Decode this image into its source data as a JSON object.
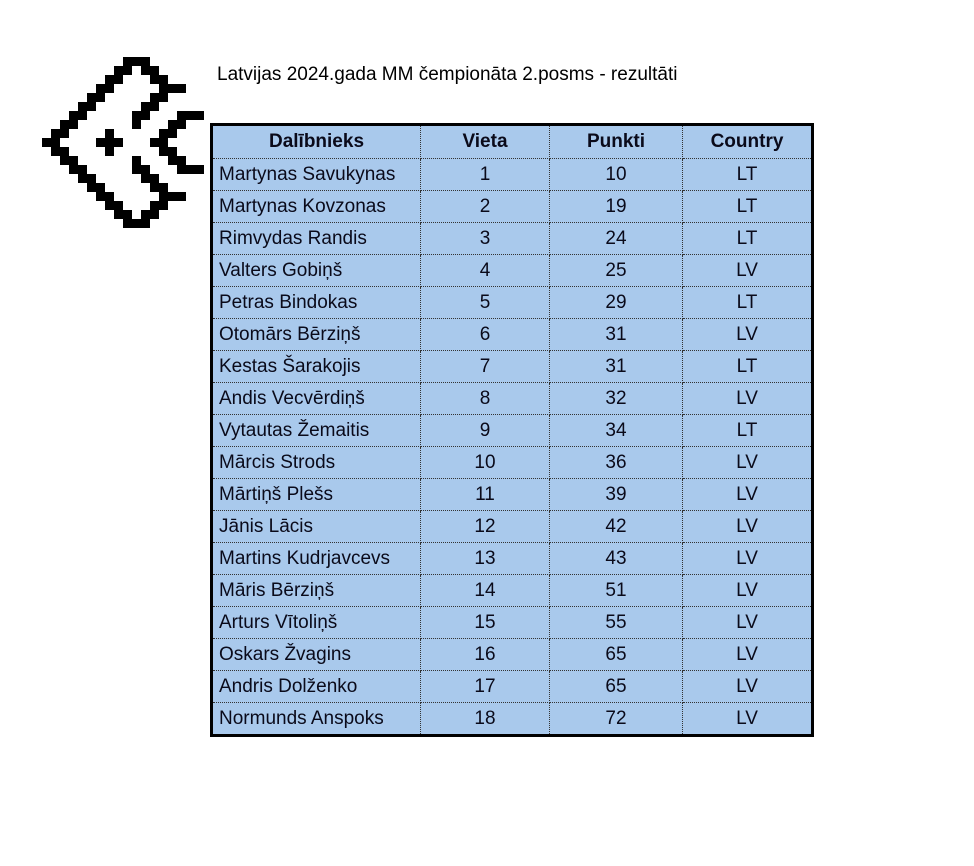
{
  "logo": {
    "icon": "pixel-chevron-logo",
    "color": "#000000"
  },
  "title": "Latvijas 2024.gada MM čempionāta 2.posms - rezultāti",
  "table": {
    "background": "#a9c9ec",
    "headers": [
      "Dalībnieks",
      "Vieta",
      "Punkti",
      "Country"
    ],
    "rows": [
      [
        "Martynas Savukynas",
        "1",
        "10",
        "LT"
      ],
      [
        "Martynas Kovzonas",
        "2",
        "19",
        "LT"
      ],
      [
        "Rimvydas Randis",
        "3",
        "24",
        "LT"
      ],
      [
        "Valters Gobiņš",
        "4",
        "25",
        "LV"
      ],
      [
        "Petras Bindokas",
        "5",
        "29",
        "LT"
      ],
      [
        "Otomārs Bērziņš",
        "6",
        "31",
        "LV"
      ],
      [
        "Kestas Šarakojis",
        "7",
        "31",
        "LT"
      ],
      [
        "Andis Vecvērdiņš",
        "8",
        "32",
        "LV"
      ],
      [
        "Vytautas Žemaitis",
        "9",
        "34",
        "LT"
      ],
      [
        "Mārcis Strods",
        "10",
        "36",
        "LV"
      ],
      [
        "Mārtiņš Plešs",
        "11",
        "39",
        "LV"
      ],
      [
        "Jānis Lācis",
        "12",
        "42",
        "LV"
      ],
      [
        "Martins Kudrjavcevs",
        "13",
        "43",
        "LV"
      ],
      [
        "Māris Bērziņš",
        "14",
        "51",
        "LV"
      ],
      [
        "Arturs Vītoliņš",
        "15",
        "55",
        "LV"
      ],
      [
        "Oskars Žvagins",
        "16",
        "65",
        "LV"
      ],
      [
        "Andris Dolženko",
        "17",
        "65",
        "LV"
      ],
      [
        "Normunds Anspoks",
        "18",
        "72",
        "LV"
      ]
    ]
  }
}
